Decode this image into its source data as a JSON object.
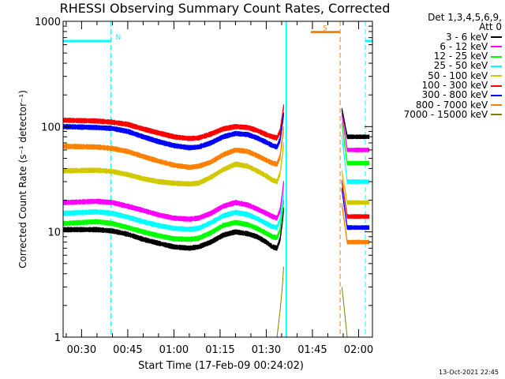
{
  "chart_data": {
    "type": "line",
    "title": "RHESSI Observing Summary Count Rates, Corrected",
    "xlabel": "Start Time (17-Feb-09 00:24:02)",
    "ylabel": "Corrected Count Rate (s⁻¹ detector⁻¹)",
    "yscale": "log",
    "ylim": [
      1,
      1000
    ],
    "yticks": [
      "1",
      "10",
      "100",
      "1000"
    ],
    "xlim_minutes": [
      24.0,
      124.5
    ],
    "xtick_labels": [
      "00:30",
      "00:45",
      "01:00",
      "01:15",
      "01:30",
      "01:45",
      "02:00"
    ],
    "xtick_minutes": [
      30,
      45,
      60,
      75,
      90,
      105,
      120
    ],
    "legend_header": [
      "Det 1,3,4,5,6,9,",
      "Att 0"
    ],
    "legend_position": "right",
    "series": [
      {
        "name": "3 - 6 keV",
        "color": "#000000",
        "points": [
          [
            24,
            10.5
          ],
          [
            35,
            10.5
          ],
          [
            40,
            10.2
          ],
          [
            45,
            9.5
          ],
          [
            50,
            8.5
          ],
          [
            55,
            7.8
          ],
          [
            60,
            7.2
          ],
          [
            65,
            7.0
          ],
          [
            68,
            7.2
          ],
          [
            72,
            8.0
          ],
          [
            76,
            9.3
          ],
          [
            80,
            10.0
          ],
          [
            84,
            9.6
          ],
          [
            87,
            9.0
          ],
          [
            90,
            8.0
          ],
          [
            92,
            7.2
          ],
          [
            93.5,
            7.0
          ],
          [
            94.5,
            8.5
          ],
          [
            95.3,
            13
          ],
          [
            95.7,
            17
          ]
        ]
      },
      {
        "name": "6 - 12 keV",
        "color": "#ff00ff",
        "points": [
          [
            24,
            19
          ],
          [
            35,
            19.5
          ],
          [
            40,
            19
          ],
          [
            45,
            17.5
          ],
          [
            50,
            16
          ],
          [
            55,
            14.5
          ],
          [
            60,
            13.5
          ],
          [
            65,
            13.2
          ],
          [
            68,
            13.5
          ],
          [
            72,
            15
          ],
          [
            76,
            17.5
          ],
          [
            80,
            19
          ],
          [
            84,
            18
          ],
          [
            87,
            16.5
          ],
          [
            90,
            15
          ],
          [
            92,
            14
          ],
          [
            93.5,
            13.5
          ],
          [
            94.5,
            16
          ],
          [
            95.3,
            24
          ],
          [
            95.7,
            30
          ]
        ]
      },
      {
        "name": "12 - 25 keV",
        "color": "#00ff00",
        "points": [
          [
            24,
            12
          ],
          [
            35,
            12.5
          ],
          [
            40,
            12
          ],
          [
            45,
            11
          ],
          [
            50,
            10
          ],
          [
            55,
            9.2
          ],
          [
            60,
            8.6
          ],
          [
            65,
            8.5
          ],
          [
            68,
            8.7
          ],
          [
            72,
            9.8
          ],
          [
            76,
            11.5
          ],
          [
            80,
            12.3
          ],
          [
            84,
            11.7
          ],
          [
            87,
            10.8
          ],
          [
            90,
            9.7
          ],
          [
            92,
            9.0
          ],
          [
            93.5,
            8.8
          ],
          [
            94.5,
            10.5
          ],
          [
            95.3,
            16
          ],
          [
            95.7,
            20
          ]
        ]
      },
      {
        "name": "25 - 50 keV",
        "color": "#00ffff",
        "points": [
          [
            24,
            15
          ],
          [
            35,
            15.5
          ],
          [
            40,
            15
          ],
          [
            45,
            13.8
          ],
          [
            50,
            12.5
          ],
          [
            55,
            11.5
          ],
          [
            60,
            10.8
          ],
          [
            65,
            10.6
          ],
          [
            68,
            10.8
          ],
          [
            72,
            12.2
          ],
          [
            76,
            14.2
          ],
          [
            80,
            15.3
          ],
          [
            84,
            14.6
          ],
          [
            87,
            13.4
          ],
          [
            90,
            12.0
          ],
          [
            92,
            11.2
          ],
          [
            93.5,
            11.0
          ],
          [
            94.5,
            13
          ],
          [
            95.3,
            19
          ],
          [
            95.7,
            23
          ]
        ]
      },
      {
        "name": "50 - 100 keV",
        "color": "#d2c800",
        "points": [
          [
            24,
            38
          ],
          [
            35,
            38.5
          ],
          [
            40,
            37.5
          ],
          [
            45,
            35
          ],
          [
            50,
            32
          ],
          [
            55,
            30
          ],
          [
            60,
            29
          ],
          [
            65,
            28.5
          ],
          [
            68,
            29
          ],
          [
            72,
            33
          ],
          [
            76,
            39
          ],
          [
            80,
            44
          ],
          [
            84,
            42
          ],
          [
            87,
            38
          ],
          [
            90,
            34
          ],
          [
            92,
            31
          ],
          [
            93.5,
            30
          ],
          [
            94.5,
            36
          ],
          [
            95.3,
            55
          ],
          [
            95.7,
            70
          ]
        ]
      },
      {
        "name": "100 - 300 keV",
        "color": "#ff0000",
        "points": [
          [
            24,
            115
          ],
          [
            35,
            113
          ],
          [
            40,
            110
          ],
          [
            45,
            105
          ],
          [
            50,
            95
          ],
          [
            55,
            87
          ],
          [
            60,
            80
          ],
          [
            65,
            77
          ],
          [
            68,
            78
          ],
          [
            72,
            85
          ],
          [
            76,
            95
          ],
          [
            80,
            100
          ],
          [
            84,
            98
          ],
          [
            87,
            92
          ],
          [
            90,
            84
          ],
          [
            92,
            80
          ],
          [
            93.5,
            78
          ],
          [
            94.5,
            90
          ],
          [
            95.3,
            130
          ],
          [
            95.7,
            160
          ]
        ]
      },
      {
        "name": "300 - 800 keV",
        "color": "#0000ff",
        "points": [
          [
            24,
            100
          ],
          [
            35,
            98
          ],
          [
            40,
            96
          ],
          [
            45,
            90
          ],
          [
            50,
            80
          ],
          [
            55,
            72
          ],
          [
            60,
            66
          ],
          [
            65,
            63
          ],
          [
            68,
            64
          ],
          [
            72,
            70
          ],
          [
            76,
            80
          ],
          [
            80,
            86
          ],
          [
            84,
            84
          ],
          [
            87,
            78
          ],
          [
            90,
            71
          ],
          [
            92,
            66
          ],
          [
            93.5,
            64
          ],
          [
            94.5,
            75
          ],
          [
            95.3,
            110
          ],
          [
            95.7,
            135
          ]
        ]
      },
      {
        "name": "800 - 7000 keV",
        "color": "#ff8000",
        "points": [
          [
            24,
            65
          ],
          [
            35,
            64
          ],
          [
            40,
            62
          ],
          [
            45,
            58
          ],
          [
            50,
            52
          ],
          [
            55,
            47
          ],
          [
            60,
            43
          ],
          [
            65,
            41
          ],
          [
            68,
            42
          ],
          [
            72,
            46
          ],
          [
            76,
            54
          ],
          [
            80,
            60
          ],
          [
            84,
            58
          ],
          [
            87,
            53
          ],
          [
            90,
            48
          ],
          [
            92,
            45
          ],
          [
            93.5,
            44
          ],
          [
            94.5,
            52
          ],
          [
            95.3,
            80
          ],
          [
            95.7,
            100
          ]
        ]
      },
      {
        "name": "7000 - 15000 keV",
        "color": "#808000",
        "points": [
          [
            24,
            1
          ],
          [
            93.5,
            1
          ],
          [
            94.5,
            1.8
          ],
          [
            95.3,
            3.2
          ],
          [
            95.7,
            5
          ]
        ]
      }
    ],
    "flags": [
      {
        "label": "N",
        "color": "#00ffff",
        "bar_start": 24.0,
        "bar_end": 39.5,
        "value": 650
      },
      {
        "label": "S",
        "color": "#ff8000",
        "bar_start": 104.5,
        "bar_end": 114.0,
        "value": 790
      }
    ],
    "saa_periods": [
      [
        96.5,
        124.5
      ]
    ],
    "night_boundaries": [
      24.0,
      39.5
    ],
    "attenuator_marker": 114.0
  },
  "footer": "13-Oct-2021 22:45"
}
